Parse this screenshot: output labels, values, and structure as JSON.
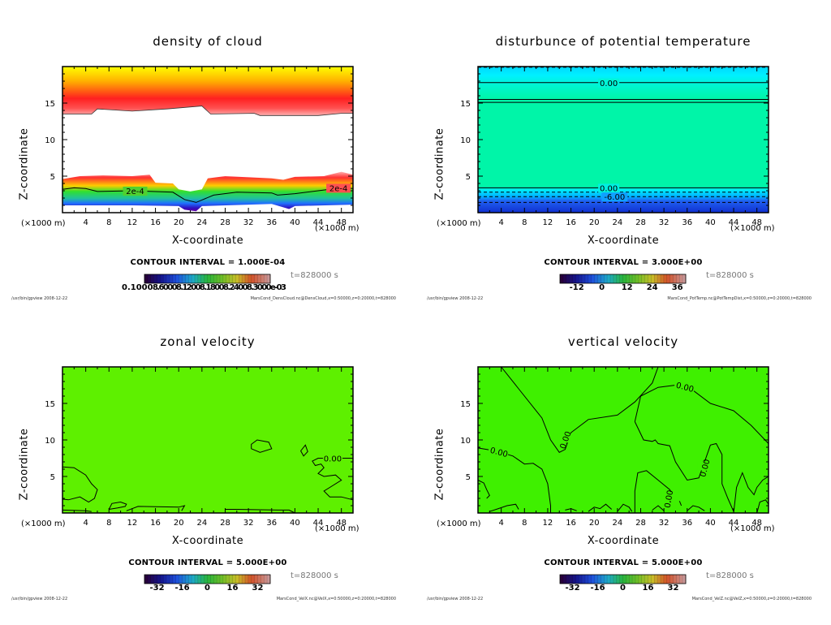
{
  "common": {
    "xlabel": "X-coordinate",
    "ylabel": "Z-coordinate",
    "x_unit_left": "(×1000 m)",
    "x_unit_right": "(×1000 m)",
    "time": "t=828000 s",
    "footer_left": "/usr/bin/gpview   2008-12-22",
    "x_ticks": [
      "4",
      "8",
      "12",
      "16",
      "20",
      "24",
      "28",
      "32",
      "36",
      "40",
      "44",
      "48"
    ],
    "y_ticks": [
      "5",
      "10",
      "15"
    ]
  },
  "chart_data": [
    {
      "type": "heatmap",
      "title": "density of cloud",
      "xlabel": "X-coordinate",
      "ylabel": "Z-coordinate",
      "xlim": [
        0,
        50
      ],
      "ylim": [
        0,
        20
      ],
      "x_unit": "×1000 m",
      "y_unit": "×1000 m",
      "contour_interval": "CONTOUR INTERVAL = 1.000E-04",
      "contour_labels": [
        "2e-4",
        "2e-4"
      ],
      "colorbar_labels_raw": "0.10000.60000.12000.18000.24000.30000e-03",
      "colorbar_labels_text": "0.1000",
      "colorbar_labels_overlap": "8.60008.12008.18008.24008.3000e-03",
      "colorbar_range": [
        0.0001,
        0.0003
      ],
      "time": "t=828000 s",
      "footer_right": "MarsCond_DensCloud.nc@DensCloud,x=0:50000,z=0:20000,t=828000",
      "colors": {
        "high": "#ffff00",
        "mid": "#ff1a1a",
        "low": "#4000a0"
      }
    },
    {
      "type": "heatmap",
      "title": "disturbunce of potential temperature",
      "xlabel": "X-coordinate",
      "ylabel": "Z-coordinate",
      "xlim": [
        0,
        50
      ],
      "ylim": [
        0,
        20
      ],
      "contour_interval": "CONTOUR INTERVAL = 3.000E+00",
      "contour_labels": [
        "0.00",
        "0.00",
        "-6.00"
      ],
      "colorbar_ticks": [
        "-12",
        "0",
        "12",
        "24",
        "36"
      ],
      "colorbar_range": [
        -20,
        40
      ],
      "time": "t=828000 s",
      "footer_right": "MarsCond_PotTemp.nc@PotTempDist,x=0:50000,z=0:20000,t=828000",
      "colors": {
        "main": "#00f5a8",
        "top": "#00f0ff",
        "low": "#1030e0"
      }
    },
    {
      "type": "heatmap",
      "title": "zonal velocity",
      "xlabel": "X-coordinate",
      "ylabel": "Z-coordinate",
      "xlim": [
        0,
        50
      ],
      "ylim": [
        0,
        20
      ],
      "contour_interval": "CONTOUR INTERVAL = 5.000E+00",
      "contour_labels": [
        "0.00"
      ],
      "colorbar_ticks": [
        "-32",
        "-16",
        "0",
        "16",
        "32"
      ],
      "colorbar_range": [
        -40,
        40
      ],
      "time": "t=828000 s",
      "footer_right": "MarsCond_VelX.nc@VelX,x=0:50000,z=0:20000,t=828000",
      "colors": {
        "main": "#5ef000"
      }
    },
    {
      "type": "heatmap",
      "title": "vertical velocity",
      "xlabel": "X-coordinate",
      "ylabel": "Z-coordinate",
      "xlim": [
        0,
        50
      ],
      "ylim": [
        0,
        20
      ],
      "contour_interval": "CONTOUR INTERVAL = 5.000E+00",
      "contour_labels": [
        "0.00",
        "0.00",
        "0.00",
        "0.00",
        "0.00"
      ],
      "colorbar_ticks": [
        "-32",
        "-16",
        "0",
        "16",
        "32"
      ],
      "colorbar_range": [
        -40,
        40
      ],
      "time": "t=828000 s",
      "footer_right": "MarsCond_VelZ.nc@VelZ,x=0:50000,z=0:20000,t=828000",
      "colors": {
        "main": "#3ff000"
      }
    }
  ]
}
